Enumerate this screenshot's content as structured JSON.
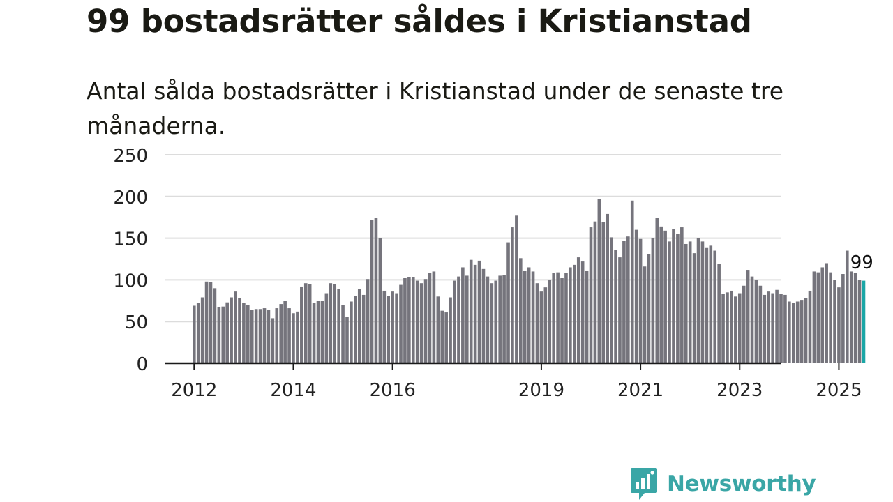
{
  "title": "99 bostadsrätter såldes i Kristianstad",
  "subtitle": "Antal sålda bostadsrätter i Kristianstad under de senaste tre månaderna.",
  "brand": {
    "name": "Newsworthy",
    "icon": "newsworthy-logo-icon"
  },
  "colors": {
    "bar": "#75747c",
    "highlight": "#1aa6a6",
    "grid": "#dcdcdc",
    "axis": "#1a1a1a",
    "text": "#1a1a14",
    "brand": "#3aa6a6"
  },
  "chart_data": {
    "type": "bar",
    "x_start": "2012-01",
    "x_end": "2025-09",
    "ylim": [
      0,
      250
    ],
    "yticks": [
      "0",
      "50",
      "100",
      "150",
      "200",
      "250"
    ],
    "xticks": [
      {
        "label": "2012",
        "date": "2012-01"
      },
      {
        "label": "2014",
        "date": "2014-01"
      },
      {
        "label": "2016",
        "date": "2016-01"
      },
      {
        "label": "2019",
        "date": "2019-01"
      },
      {
        "label": "2021",
        "date": "2021-01"
      },
      {
        "label": "2023",
        "date": "2023-01"
      },
      {
        "label": "2025",
        "date": "2025-01"
      }
    ],
    "grid": true,
    "values": [
      69,
      72,
      79,
      98,
      97,
      90,
      67,
      68,
      73,
      79,
      86,
      78,
      72,
      70,
      64,
      65,
      65,
      66,
      64,
      54,
      66,
      71,
      75,
      66,
      60,
      62,
      92,
      96,
      95,
      72,
      75,
      75,
      84,
      96,
      95,
      89,
      70,
      56,
      74,
      81,
      89,
      82,
      101,
      172,
      174,
      150,
      87,
      81,
      86,
      84,
      94,
      102,
      103,
      103,
      99,
      96,
      101,
      108,
      110,
      80,
      63,
      61,
      79,
      99,
      104,
      115,
      105,
      124,
      118,
      123,
      113,
      104,
      96,
      99,
      105,
      106,
      145,
      163,
      177,
      126,
      111,
      115,
      110,
      96,
      86,
      91,
      100,
      108,
      109,
      102,
      108,
      115,
      118,
      127,
      122,
      111,
      163,
      170,
      197,
      169,
      179,
      151,
      136,
      127,
      147,
      152,
      195,
      160,
      149,
      116,
      131,
      150,
      174,
      164,
      159,
      146,
      161,
      155,
      163,
      143,
      146,
      132,
      150,
      146,
      139,
      141,
      135,
      119,
      83,
      85,
      87,
      80,
      84,
      93,
      112,
      104,
      100,
      93,
      82,
      86,
      84,
      88,
      83,
      82,
      74,
      72,
      74,
      76,
      78,
      87,
      110,
      109,
      115,
      120,
      109,
      100,
      91,
      107,
      135,
      110,
      108,
      100,
      99
    ],
    "highlight": {
      "date": "2025-07",
      "value": 99,
      "label": "99"
    }
  }
}
